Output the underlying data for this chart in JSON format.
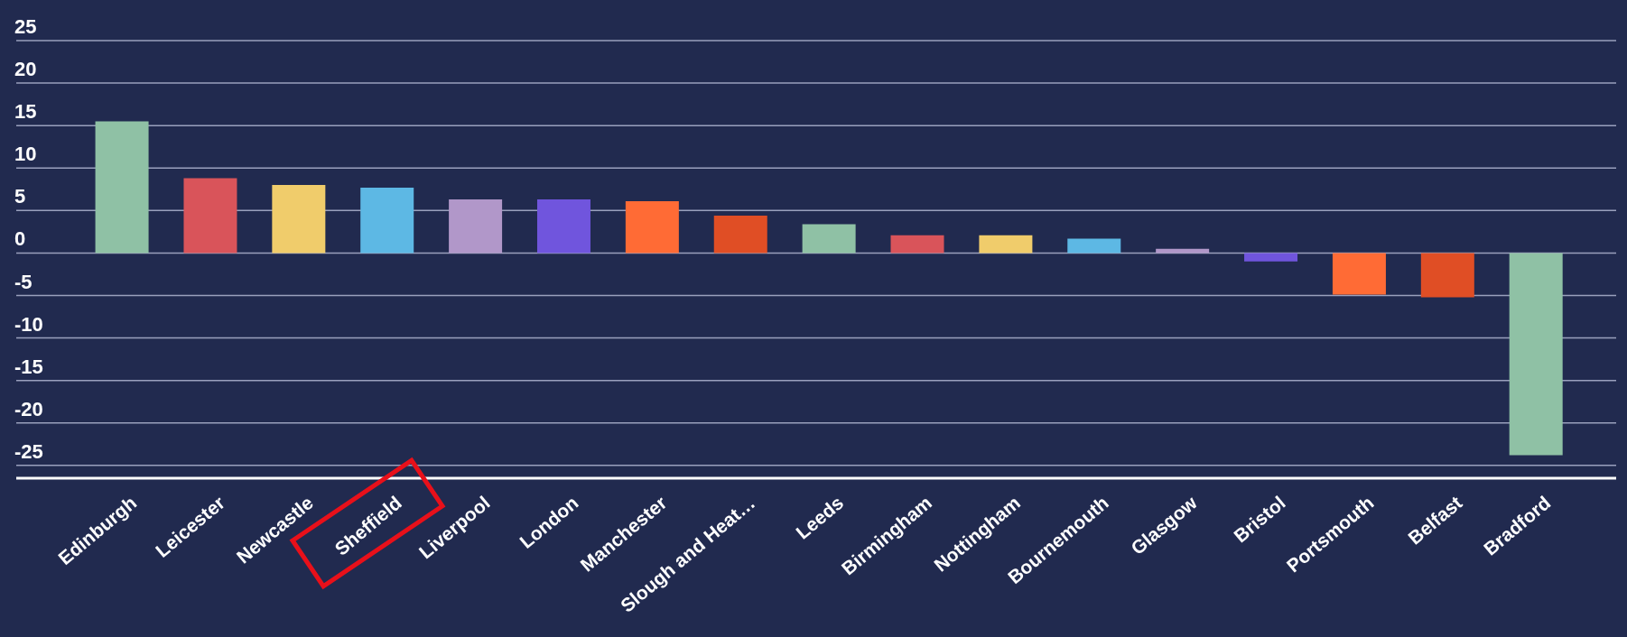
{
  "chart_data": {
    "type": "bar",
    "categories": [
      "Edinburgh",
      "Leicester",
      "Newcastle",
      "Sheffield",
      "Liverpool",
      "London",
      "Manchester",
      "Slough and Heat…",
      "Leeds",
      "Birmingham",
      "Nottingham",
      "Bournemouth",
      "Glasgow",
      "Bristol",
      "Portsmouth",
      "Belfast",
      "Bradford"
    ],
    "values": [
      15.5,
      8.8,
      8.0,
      7.7,
      6.3,
      6.3,
      6.1,
      4.4,
      3.4,
      2.1,
      2.1,
      1.7,
      0.5,
      -1.0,
      -4.9,
      -5.2,
      -23.8
    ],
    "colors": [
      "#8fc1a5",
      "#d9545a",
      "#f0cc6b",
      "#5db8e4",
      "#b197c9",
      "#7055dd",
      "#ff6b35",
      "#e04e25",
      "#8fc1a5",
      "#d9545a",
      "#f0cc6b",
      "#5db8e4",
      "#b197c9",
      "#7055dd",
      "#ff6b35",
      "#e04e25",
      "#8fc1a5"
    ],
    "ylim": [
      -26.5,
      25
    ],
    "yticks": [
      25,
      20,
      15,
      10,
      5,
      0,
      -5,
      -10,
      -15,
      -20,
      -25
    ],
    "grid": "y",
    "legend": false
  }
}
